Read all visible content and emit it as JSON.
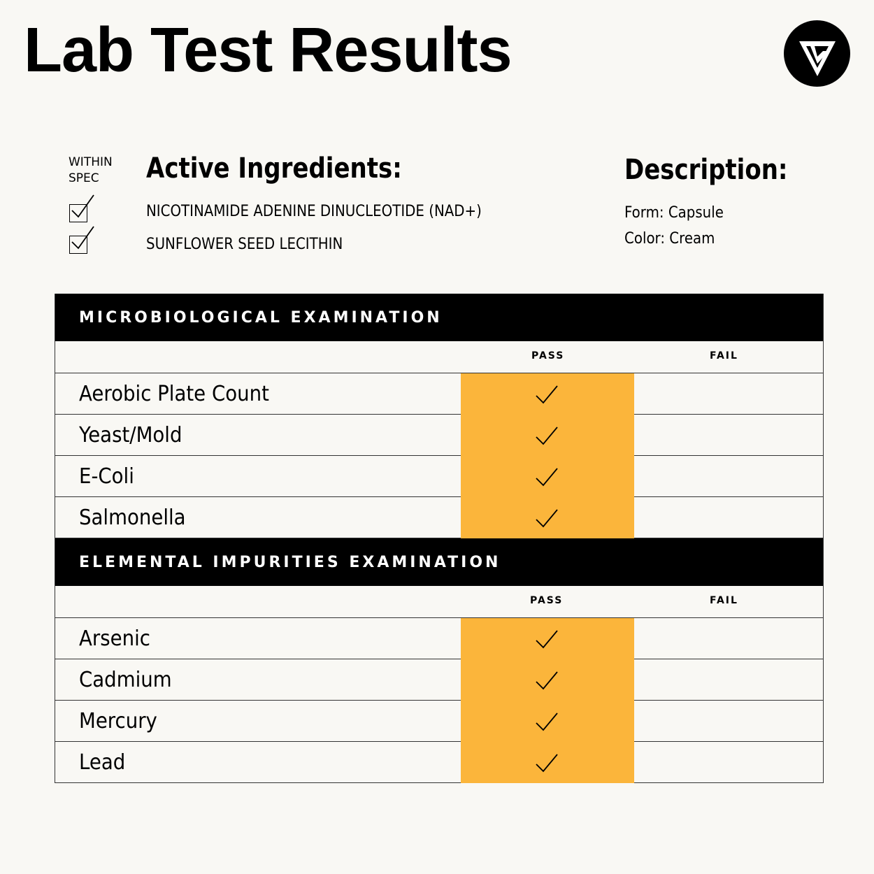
{
  "title": "Lab Test Results",
  "colors": {
    "background": "#f9f8f4",
    "pass_highlight": "#fbb53b",
    "header": "#000000"
  },
  "logo_icon": "triangle-v-logo",
  "within_spec_label": "WITHIN SPEC",
  "active_ingredients": {
    "heading": "Active Ingredients:",
    "items": [
      {
        "name": "NICOTINAMIDE ADENINE DINUCLEOTIDE (NAD+)",
        "within_spec": true
      },
      {
        "name": "SUNFLOWER SEED LECITHIN",
        "within_spec": true
      }
    ]
  },
  "description": {
    "heading": "Description:",
    "form": "Form: Capsule",
    "color": "Color: Cream"
  },
  "sections": [
    {
      "title": "MICROBIOLOGICAL EXAMINATION",
      "pass_label": "PASS",
      "fail_label": "FAIL",
      "rows": [
        {
          "name": "Aerobic Plate Count",
          "result": "pass"
        },
        {
          "name": "Yeast/Mold",
          "result": "pass"
        },
        {
          "name": "E-Coli",
          "result": "pass"
        },
        {
          "name": "Salmonella",
          "result": "pass"
        }
      ]
    },
    {
      "title": "ELEMENTAL IMPURITIES EXAMINATION",
      "pass_label": "PASS",
      "fail_label": "FAIL",
      "rows": [
        {
          "name": "Arsenic",
          "result": "pass"
        },
        {
          "name": "Cadmium",
          "result": "pass"
        },
        {
          "name": "Mercury",
          "result": "pass"
        },
        {
          "name": "Lead",
          "result": "pass"
        }
      ]
    }
  ]
}
